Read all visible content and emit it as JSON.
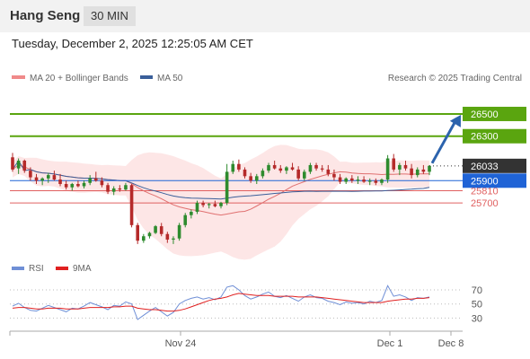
{
  "header": {
    "instrument": "Hang Seng",
    "interval": "30 MIN",
    "timestamp": "Tuesday, December 2, 2025 12:25:05 AM CET"
  },
  "legend": {
    "ma20_label": "MA 20 + Bollinger Bands",
    "ma50_label": "MA 50",
    "rsi_label": "RSI",
    "rsi_ma_label": "9MA",
    "credit": "Research © 2025 Trading Central"
  },
  "colors": {
    "green_level": "#5aa50f",
    "red_level": "#e06060",
    "ma50": "#3a5f9a",
    "ma20": "#e07070",
    "band_fill": "#fde2e2",
    "arrow": "#2c63ad",
    "candle_up": "#2e8b2e",
    "candle_down": "#b52a2a",
    "current_price_bg": "#333333",
    "ma50_price_bg": "#1f63d6",
    "rsi": "#6f8fd6",
    "rsi_ma": "#e02020"
  },
  "chart_data": [
    {
      "type": "candlestick",
      "title": "Hang Seng",
      "x_ticks": [
        "Nov 24",
        "Dec 1",
        "Dec 8"
      ],
      "ylim": [
        25200,
        26750
      ],
      "levels": [
        {
          "value": 26500,
          "label": "26500",
          "kind": "resistance"
        },
        {
          "value": 26300,
          "label": "26300",
          "kind": "resistance"
        },
        {
          "value": 25810,
          "label": "25810",
          "kind": "support"
        },
        {
          "value": 25700,
          "label": "25700",
          "kind": "support"
        }
      ],
      "current_price": {
        "value": 26033,
        "label": "26033"
      },
      "ma50_price": {
        "value": 25900,
        "label": "25900"
      },
      "projection": {
        "from": 26033,
        "to": 26500
      },
      "ohlc": [
        [
          26110,
          26150,
          25980,
          26000
        ],
        [
          26010,
          26100,
          25960,
          26080
        ],
        [
          26080,
          26090,
          25970,
          25990
        ],
        [
          25990,
          26020,
          25900,
          25930
        ],
        [
          25930,
          25960,
          25870,
          25900
        ],
        [
          25900,
          25930,
          25860,
          25920
        ],
        [
          25920,
          25970,
          25880,
          25950
        ],
        [
          25950,
          25990,
          25900,
          25910
        ],
        [
          25910,
          25960,
          25850,
          25870
        ],
        [
          25870,
          25900,
          25820,
          25840
        ],
        [
          25840,
          25880,
          25810,
          25870
        ],
        [
          25870,
          25900,
          25840,
          25850
        ],
        [
          25850,
          25900,
          25830,
          25880
        ],
        [
          25880,
          25950,
          25860,
          25920
        ],
        [
          25920,
          25980,
          25890,
          25900
        ],
        [
          25900,
          25930,
          25840,
          25860
        ],
        [
          25860,
          25880,
          25780,
          25800
        ],
        [
          25800,
          25850,
          25770,
          25830
        ],
        [
          25830,
          25860,
          25800,
          25820
        ],
        [
          25820,
          25880,
          25810,
          25860
        ],
        [
          25860,
          25870,
          25480,
          25500
        ],
        [
          25500,
          25520,
          25330,
          25360
        ],
        [
          25360,
          25420,
          25340,
          25400
        ],
        [
          25400,
          25440,
          25380,
          25430
        ],
        [
          25430,
          25500,
          25420,
          25490
        ],
        [
          25490,
          25520,
          25400,
          25420
        ],
        [
          25420,
          25440,
          25340,
          25370
        ],
        [
          25370,
          25400,
          25330,
          25380
        ],
        [
          25380,
          25520,
          25360,
          25500
        ],
        [
          25500,
          25610,
          25480,
          25590
        ],
        [
          25590,
          25640,
          25560,
          25620
        ],
        [
          25620,
          25720,
          25600,
          25700
        ],
        [
          25700,
          25720,
          25660,
          25680
        ],
        [
          25680,
          25700,
          25650,
          25690
        ],
        [
          25690,
          25720,
          25660,
          25670
        ],
        [
          25670,
          25710,
          25650,
          25700
        ],
        [
          25700,
          26050,
          25680,
          25980
        ],
        [
          25980,
          26080,
          25960,
          26050
        ],
        [
          26050,
          26090,
          25980,
          26000
        ],
        [
          26000,
          26020,
          25920,
          25940
        ],
        [
          25940,
          25970,
          25880,
          25900
        ],
        [
          25900,
          25960,
          25870,
          25940
        ],
        [
          25940,
          26010,
          25920,
          25990
        ],
        [
          25990,
          26060,
          25970,
          26040
        ],
        [
          26040,
          26080,
          26000,
          26010
        ],
        [
          26010,
          26040,
          25970,
          25990
        ],
        [
          25990,
          26030,
          25960,
          26020
        ],
        [
          26020,
          26060,
          25990,
          26000
        ],
        [
          26000,
          26030,
          25900,
          25920
        ],
        [
          25920,
          26000,
          25900,
          25980
        ],
        [
          25980,
          26060,
          25960,
          26040
        ],
        [
          26040,
          26060,
          25990,
          26010
        ],
        [
          26010,
          26040,
          25980,
          26000
        ],
        [
          26000,
          26040,
          25940,
          25960
        ],
        [
          25960,
          26000,
          25900,
          25930
        ],
        [
          25930,
          25960,
          25870,
          25890
        ],
        [
          25890,
          25930,
          25870,
          25920
        ],
        [
          25920,
          25950,
          25880,
          25900
        ],
        [
          25900,
          25940,
          25870,
          25910
        ],
        [
          25910,
          25940,
          25880,
          25890
        ],
        [
          25890,
          25920,
          25860,
          25900
        ],
        [
          25900,
          25920,
          25860,
          25880
        ],
        [
          25880,
          25920,
          25860,
          25910
        ],
        [
          25910,
          26130,
          25880,
          26100
        ],
        [
          26100,
          26140,
          25980,
          26000
        ],
        [
          26000,
          26060,
          25950,
          26040
        ],
        [
          26040,
          26080,
          25990,
          26010
        ],
        [
          26010,
          26050,
          25920,
          25950
        ],
        [
          25950,
          26020,
          25930,
          26000
        ],
        [
          26000,
          26040,
          25960,
          25980
        ],
        [
          25980,
          26040,
          25950,
          26033
        ]
      ]
    },
    {
      "type": "line",
      "title": "RSI",
      "x_ticks": [
        "Nov 24",
        "Dec 1",
        "Dec 8"
      ],
      "y_ticks": [
        70,
        50,
        30
      ],
      "ylim": [
        14,
        84
      ],
      "series": [
        {
          "name": "RSI",
          "values": [
            47,
            51,
            45,
            41,
            40,
            44,
            48,
            45,
            42,
            39,
            44,
            43,
            47,
            52,
            49,
            46,
            42,
            48,
            47,
            53,
            50,
            28,
            34,
            40,
            45,
            39,
            33,
            38,
            50,
            55,
            58,
            60,
            57,
            59,
            56,
            60,
            74,
            76,
            70,
            62,
            57,
            60,
            64,
            67,
            61,
            59,
            62,
            58,
            54,
            60,
            63,
            59,
            58,
            54,
            52,
            49,
            53,
            51,
            52,
            50,
            54,
            52,
            55,
            76,
            61,
            63,
            60,
            55,
            59,
            58,
            60
          ]
        },
        {
          "name": "9MA",
          "values": [
            44,
            45,
            45,
            44,
            43,
            43,
            44,
            44,
            44,
            43,
            43,
            43,
            44,
            45,
            45,
            45,
            45,
            46,
            46,
            47,
            47,
            44,
            43,
            42,
            42,
            41,
            40,
            40,
            41,
            43,
            46,
            49,
            52,
            55,
            57,
            58,
            60,
            63,
            65,
            64,
            63,
            62,
            62,
            62,
            61,
            61,
            61,
            61,
            60,
            60,
            60,
            60,
            59,
            58,
            57,
            56,
            55,
            54,
            53,
            52,
            52,
            52,
            52,
            54,
            55,
            56,
            57,
            57,
            58,
            58,
            59
          ]
        }
      ]
    }
  ]
}
